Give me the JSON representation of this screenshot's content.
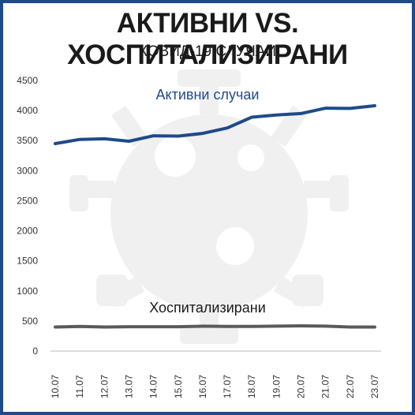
{
  "header": {
    "title": "АКТИВНИ VS. ХОСПИТАЛИЗИРАНИ",
    "subtitle": "КОВИД-19 СЛУЧАИ"
  },
  "colors": {
    "frame": "#1f4a8a",
    "active": "#1f4a8a",
    "hospitalized": "#5a5a5a",
    "watermark": "#f0f0f0"
  },
  "chart_data": {
    "type": "line",
    "title": "АКТИВНИ VS. ХОСПИТАЛИЗИРАНИ",
    "subtitle": "КОВИД-19 СЛУЧАИ",
    "x": [
      "10.07",
      "11.07",
      "12.07",
      "13.07",
      "14.07",
      "15.07",
      "16.07",
      "17.07",
      "18.07",
      "19.07",
      "20.07",
      "21.07",
      "22.07",
      "23.07"
    ],
    "yticks": [
      0,
      500,
      1000,
      1500,
      2000,
      2500,
      3000,
      3500,
      4000,
      4500
    ],
    "ylim": [
      0,
      4500
    ],
    "grid": false,
    "series": [
      {
        "name": "Активни случаи",
        "values": [
          3450,
          3520,
          3530,
          3490,
          3580,
          3575,
          3620,
          3710,
          3890,
          3925,
          3950,
          4040,
          4035,
          4080
        ]
      },
      {
        "name": "Хоспитализирани",
        "values": [
          400,
          410,
          400,
          405,
          405,
          405,
          415,
          410,
          410,
          415,
          420,
          415,
          400,
          400
        ]
      }
    ]
  }
}
